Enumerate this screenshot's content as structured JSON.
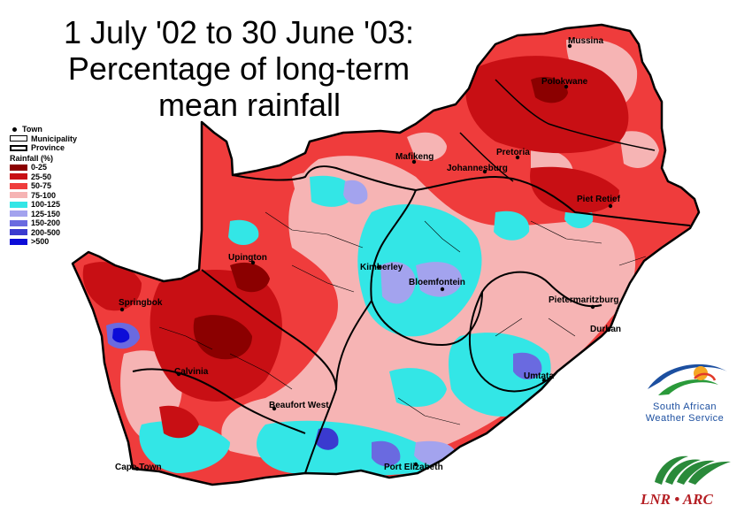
{
  "title": {
    "line1": "1 July '02 to 30 June '03:",
    "line2": "Percentage of long-term",
    "line3": "mean rainfall"
  },
  "legend": {
    "town": "Town",
    "municipality": "Municipality",
    "province": "Province",
    "rainfall_title": "Rainfall (%)",
    "classes": [
      {
        "label": "0-25",
        "color": "#8b0000"
      },
      {
        "label": "25-50",
        "color": "#c80f14"
      },
      {
        "label": "50-75",
        "color": "#ef3c3c"
      },
      {
        "label": "75-100",
        "color": "#f6b4b4"
      },
      {
        "label": "100-125",
        "color": "#33e6e6"
      },
      {
        "label": "125-150",
        "color": "#a3a3ee"
      },
      {
        "label": "150-200",
        "color": "#6a6ae0"
      },
      {
        "label": "200-500",
        "color": "#3a3acf"
      },
      {
        "label": ">500",
        "color": "#0c0cd8"
      }
    ]
  },
  "towns": [
    {
      "name": "Mussina"
    },
    {
      "name": "Polokwane"
    },
    {
      "name": "Mafikeng"
    },
    {
      "name": "Pretoria"
    },
    {
      "name": "Johannesburg"
    },
    {
      "name": "Piet Retief"
    },
    {
      "name": "Upington"
    },
    {
      "name": "Kimberley"
    },
    {
      "name": "Bloemfontein"
    },
    {
      "name": "Springbok"
    },
    {
      "name": "Pietermaritzburg"
    },
    {
      "name": "Durban"
    },
    {
      "name": "Calvinia"
    },
    {
      "name": "Umtata"
    },
    {
      "name": "Beaufort West"
    },
    {
      "name": "Cape Town"
    },
    {
      "name": "Port Elizabeth"
    }
  ],
  "logos": {
    "saws_line1": "South African",
    "saws_line2": "Weather Service",
    "lnr": "LNR • ARC"
  }
}
